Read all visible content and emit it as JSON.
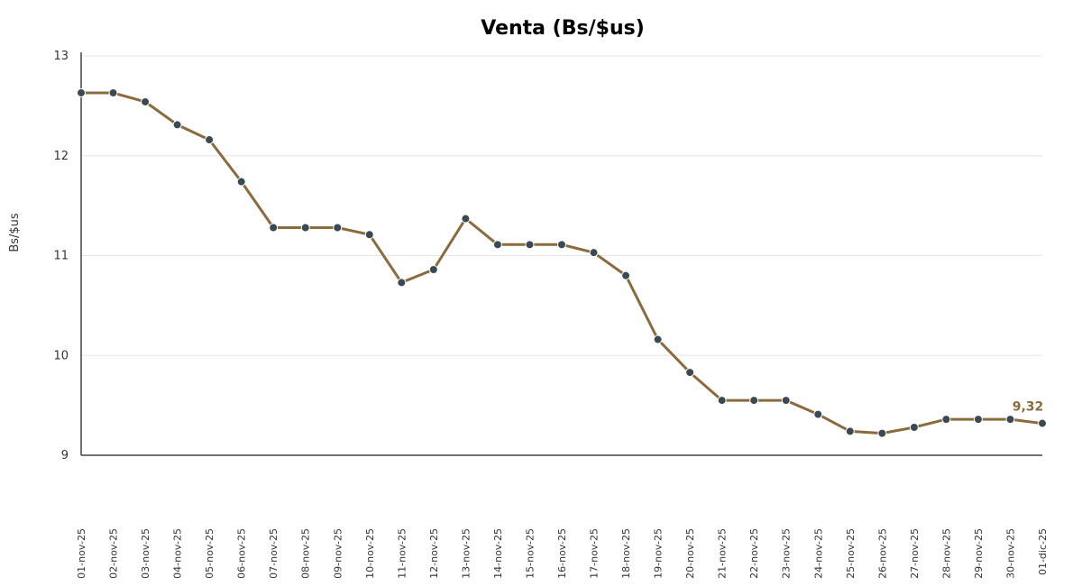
{
  "chart_data": {
    "type": "line",
    "title": "Venta (Bs/$us)",
    "ylabel": "Bs/$us",
    "xlabel": "",
    "ylim": [
      9,
      13
    ],
    "yticks": [
      "13",
      "12",
      "11",
      "10",
      "9"
    ],
    "grid": true,
    "categories": [
      "01-nov-25",
      "02-nov-25",
      "03-nov-25",
      "04-nov-25",
      "05-nov-25",
      "06-nov-25",
      "07-nov-25",
      "08-nov-25",
      "09-nov-25",
      "10-nov-25",
      "11-nov-25",
      "12-nov-25",
      "13-nov-25",
      "14-nov-25",
      "15-nov-25",
      "16-nov-25",
      "17-nov-25",
      "18-nov-25",
      "19-nov-25",
      "20-nov-25",
      "21-nov-25",
      "22-nov-25",
      "23-nov-25",
      "24-nov-25",
      "25-nov-25",
      "26-nov-25",
      "27-nov-25",
      "28-nov-25",
      "29-nov-25",
      "30-nov-25",
      "01-dic-25"
    ],
    "series": [
      {
        "values": [
          12.63,
          12.63,
          12.54,
          12.31,
          12.16,
          11.74,
          11.28,
          11.28,
          11.28,
          11.21,
          10.73,
          10.86,
          11.37,
          11.11,
          11.11,
          11.11,
          11.03,
          10.8,
          10.16,
          9.83,
          9.55,
          9.55,
          9.55,
          9.41,
          9.24,
          9.22,
          9.28,
          9.36,
          9.36,
          9.36,
          9.32
        ],
        "color": "#8b6b3d",
        "marker_color": "#3b4a52"
      }
    ],
    "last_value_label": "9,32"
  }
}
